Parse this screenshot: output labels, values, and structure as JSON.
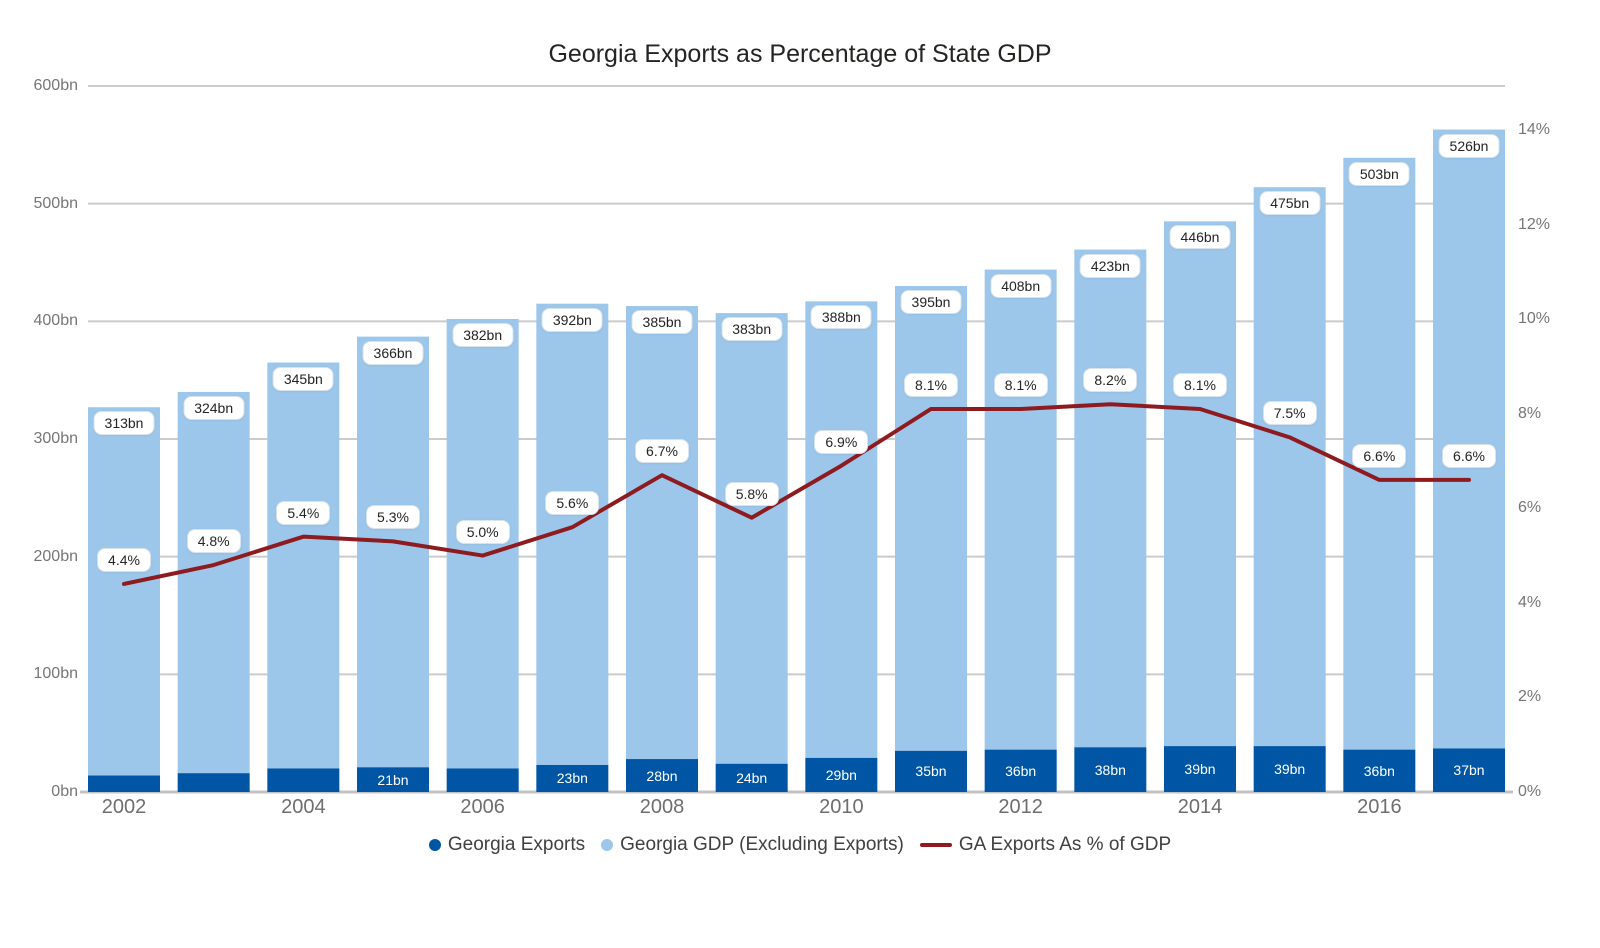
{
  "title": "Georgia Exports as Percentage of State GDP",
  "legend": {
    "exports_label": "Georgia Exports",
    "gdp_label": "Georgia GDP (Excluding Exports)",
    "pct_label": "GA Exports As % of GDP"
  },
  "colors": {
    "exports_bar": "#0056A4",
    "gdp_bar": "#9CC7EB",
    "pct_line": "#8E1B20",
    "gridline": "#CBCBCB",
    "axis_baseline": "#C2C2C2",
    "axis_text": "#767676",
    "label_box_border": "#D9E3ED",
    "label_text": "#252423"
  },
  "chart_data": {
    "type": "bar",
    "subtype": "stacked-bar-with-line-combo",
    "title": "Georgia Exports as Percentage of State GDP",
    "grid": "horizontal-on",
    "legend_position": "bottom",
    "x": [
      2002,
      2003,
      2004,
      2005,
      2006,
      2007,
      2008,
      2009,
      2010,
      2011,
      2012,
      2013,
      2014,
      2015,
      2016,
      2017
    ],
    "x_tick_labels": [
      "2002",
      "2004",
      "2006",
      "2008",
      "2010",
      "2012",
      "2014",
      "2016"
    ],
    "x_tick_indices": [
      0,
      2,
      4,
      6,
      8,
      10,
      12,
      14
    ],
    "left_axis": {
      "unit": "bn",
      "range": [
        0,
        600
      ],
      "tick_values": [
        0,
        100,
        200,
        300,
        400,
        500,
        600
      ],
      "tick_labels": [
        "0bn",
        "100bn",
        "200bn",
        "300bn",
        "400bn",
        "500bn",
        "600bn"
      ]
    },
    "right_axis": {
      "unit": "%",
      "range": [
        0,
        14
      ],
      "tick_values": [
        0,
        2,
        4,
        6,
        8,
        10,
        12,
        14
      ],
      "tick_labels": [
        "0%",
        "2%",
        "4%",
        "6%",
        "8%",
        "10%",
        "12%",
        "14%"
      ]
    },
    "series": [
      {
        "name": "Georgia Exports",
        "type": "bar",
        "stack": "bottom",
        "axis": "left",
        "color": "#0056A4",
        "values": [
          14,
          16,
          20,
          21,
          20,
          23,
          28,
          24,
          29,
          35,
          36,
          38,
          39,
          39,
          36,
          37
        ],
        "labels": [
          null,
          null,
          null,
          "21bn",
          null,
          "23bn",
          "28bn",
          "24bn",
          "29bn",
          "35bn",
          "36bn",
          "38bn",
          "39bn",
          "39bn",
          "36bn",
          "37bn"
        ]
      },
      {
        "name": "Georgia GDP (Excluding Exports)",
        "type": "bar",
        "stack": "top",
        "axis": "left",
        "color": "#9CC7EB",
        "values": [
          313,
          324,
          345,
          366,
          382,
          392,
          385,
          383,
          388,
          395,
          408,
          423,
          446,
          475,
          503,
          526
        ],
        "labels": [
          "313bn",
          "324bn",
          "345bn",
          "366bn",
          "382bn",
          "392bn",
          "385bn",
          "383bn",
          "388bn",
          "395bn",
          "408bn",
          "423bn",
          "446bn",
          "475bn",
          "503bn",
          "526bn"
        ]
      },
      {
        "name": "GA Exports As % of GDP",
        "type": "line",
        "axis": "right",
        "color": "#8E1B20",
        "values": [
          4.4,
          4.8,
          5.4,
          5.3,
          5.0,
          5.6,
          6.7,
          5.8,
          6.9,
          8.1,
          8.1,
          8.2,
          8.1,
          7.5,
          6.6,
          6.6
        ],
        "labels": [
          "4.4%",
          "4.8%",
          "5.4%",
          "5.3%",
          "5.0%",
          "5.6%",
          "6.7%",
          "5.8%",
          "6.9%",
          "8.1%",
          "8.1%",
          "8.2%",
          "8.1%",
          "7.5%",
          "6.6%",
          "6.6%"
        ]
      }
    ]
  }
}
